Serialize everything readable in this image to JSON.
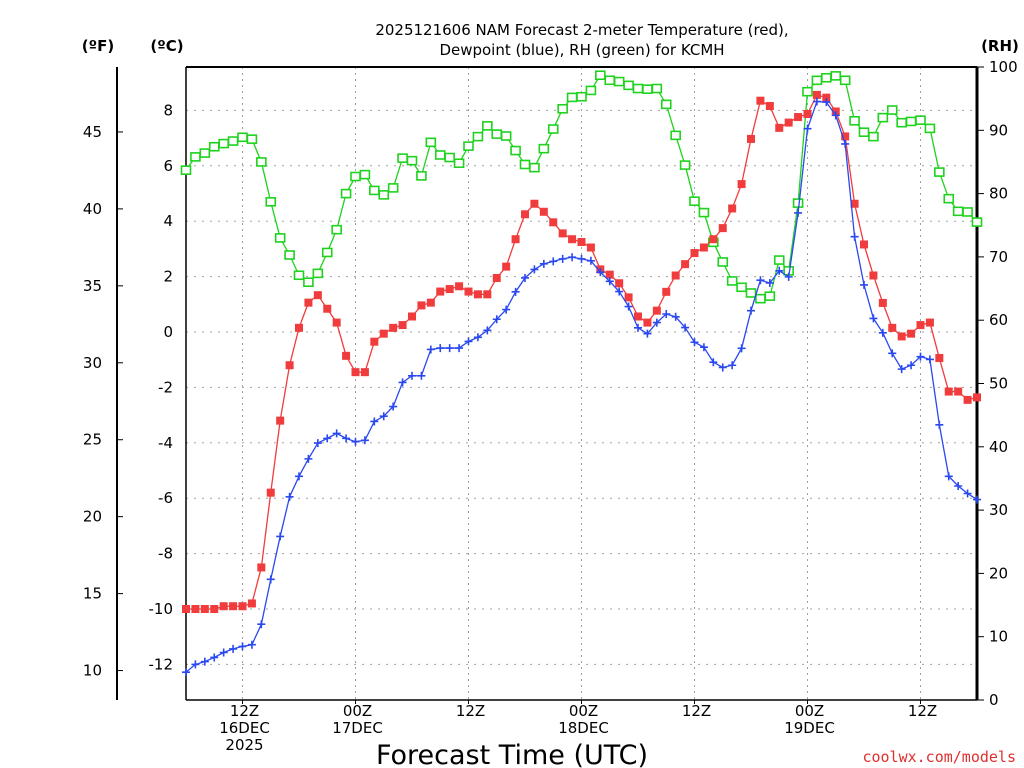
{
  "chart_data": {
    "type": "line",
    "title": [
      "2025121606 NAM Forecast 2-meter Temperature (red),",
      "Dewpoint (blue), RH (green) for KCMH"
    ],
    "units": {
      "left_f": "(ºF)",
      "left_c": "(ºC)",
      "right": "(RH)"
    },
    "xlabel": "Forecast Time (UTC)",
    "credit": "coolwx.com/models",
    "x_hours_from_init": {
      "start": 0,
      "end": 84,
      "step": 1
    },
    "xlim_hours": [
      0,
      84
    ],
    "ylim_c": [
      -13.3,
      9.6
    ],
    "ylim_rh": [
      0,
      100
    ],
    "grid": true,
    "x_ticks": [
      {
        "hour": 6,
        "lines": [
          "12Z",
          "16DEC",
          "2025"
        ]
      },
      {
        "hour": 18,
        "lines": [
          "00Z",
          "17DEC"
        ]
      },
      {
        "hour": 30,
        "lines": [
          "12Z"
        ]
      },
      {
        "hour": 42,
        "lines": [
          "00Z",
          "18DEC"
        ]
      },
      {
        "hour": 54,
        "lines": [
          "12Z"
        ]
      },
      {
        "hour": 66,
        "lines": [
          "00Z",
          "19DEC"
        ]
      },
      {
        "hour": 78,
        "lines": [
          "12Z"
        ]
      }
    ],
    "y_ticks_c": [
      "-12",
      "-10",
      "-8",
      "-6",
      "-4",
      "-2",
      "0",
      "2",
      "4",
      "6",
      "8"
    ],
    "y_ticks_f": [
      "10",
      "15",
      "20",
      "25",
      "30",
      "35",
      "40",
      "45"
    ],
    "y_ticks_rh": [
      "0",
      "10",
      "20",
      "30",
      "40",
      "50",
      "60",
      "70",
      "80",
      "90",
      "100"
    ],
    "series": [
      {
        "name": "Temperature",
        "unit": "C",
        "color": "#f03c3c",
        "marker": "filled-square",
        "values": [
          -10.0,
          -10.0,
          -10.0,
          -10.0,
          -9.9,
          -9.9,
          -9.9,
          -9.8,
          -8.5,
          -5.8,
          -3.2,
          -1.2,
          0.15,
          1.06,
          1.33,
          0.84,
          0.34,
          -0.86,
          -1.45,
          -1.45,
          -0.35,
          -0.06,
          0.15,
          0.25,
          0.56,
          0.96,
          1.06,
          1.46,
          1.55,
          1.65,
          1.46,
          1.36,
          1.36,
          1.95,
          2.36,
          3.35,
          4.25,
          4.63,
          4.34,
          3.96,
          3.56,
          3.35,
          3.25,
          3.05,
          2.26,
          2.07,
          1.76,
          1.25,
          0.56,
          0.34,
          0.77,
          1.45,
          2.04,
          2.45,
          2.85,
          3.05,
          3.35,
          3.75,
          4.46,
          5.34,
          6.97,
          8.35,
          8.16,
          7.37,
          7.56,
          7.76,
          7.87,
          8.56,
          8.46,
          7.96,
          7.06,
          4.63,
          3.16,
          2.04,
          1.05,
          0.15,
          -0.16,
          -0.06,
          0.25,
          0.34,
          -0.94,
          -2.15,
          -2.15,
          -2.45,
          -2.36
        ]
      },
      {
        "name": "Dewpoint",
        "unit": "C",
        "color": "#2a48f0",
        "marker": "plus",
        "values": [
          -12.28,
          -12.0,
          -11.9,
          -11.75,
          -11.57,
          -11.44,
          -11.35,
          -11.29,
          -10.55,
          -8.93,
          -7.38,
          -5.95,
          -5.21,
          -4.58,
          -4.01,
          -3.84,
          -3.66,
          -3.84,
          -3.96,
          -3.91,
          -3.23,
          -3.04,
          -2.69,
          -1.82,
          -1.58,
          -1.58,
          -0.63,
          -0.58,
          -0.58,
          -0.58,
          -0.34,
          -0.19,
          0.06,
          0.46,
          0.81,
          1.45,
          1.95,
          2.26,
          2.46,
          2.55,
          2.64,
          2.7,
          2.64,
          2.57,
          2.16,
          1.83,
          1.46,
          0.92,
          0.15,
          -0.06,
          0.34,
          0.65,
          0.55,
          0.16,
          -0.37,
          -0.55,
          -1.09,
          -1.28,
          -1.2,
          -0.59,
          0.77,
          1.87,
          1.77,
          2.21,
          1.99,
          4.3,
          7.34,
          8.32,
          8.3,
          7.82,
          6.79,
          3.44,
          1.7,
          0.49,
          -0.03,
          -0.77,
          -1.34,
          -1.2,
          -0.89,
          -0.99,
          -3.35,
          -5.21,
          -5.56,
          -5.83,
          -6.05
        ]
      },
      {
        "name": "RH",
        "unit": "%",
        "color": "#1ed21e",
        "marker": "open-square",
        "values": [
          83.7,
          85.8,
          86.4,
          87.4,
          87.9,
          88.3,
          88.9,
          88.6,
          85.0,
          78.7,
          73.0,
          70.3,
          67.1,
          66.0,
          67.4,
          70.7,
          74.3,
          80.0,
          82.7,
          83.0,
          80.5,
          79.8,
          80.9,
          85.6,
          85.2,
          82.8,
          88.1,
          86.1,
          85.7,
          84.8,
          87.5,
          89.0,
          90.7,
          89.4,
          89.1,
          86.8,
          84.6,
          84.1,
          87.1,
          90.2,
          93.4,
          95.2,
          95.3,
          96.3,
          98.7,
          97.9,
          97.7,
          97.1,
          96.6,
          96.5,
          96.6,
          94.1,
          89.2,
          84.5,
          78.8,
          77.0,
          72.3,
          69.2,
          66.2,
          65.2,
          64.3,
          63.4,
          63.8,
          69.5,
          67.8,
          78.5,
          96.1,
          97.9,
          98.3,
          98.6,
          97.9,
          91.5,
          89.7,
          89.0,
          92.0,
          93.2,
          91.2,
          91.4,
          91.6,
          90.3,
          83.4,
          79.2,
          77.2,
          77.1,
          75.5
        ]
      }
    ]
  }
}
